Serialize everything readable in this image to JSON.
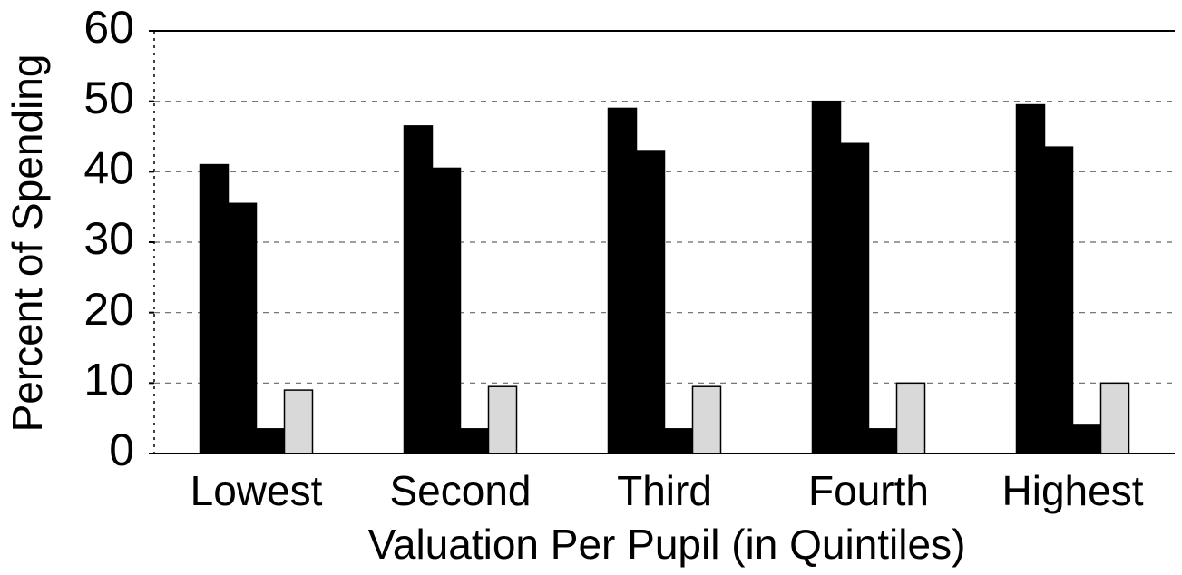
{
  "chart_data": {
    "type": "bar",
    "y_label": "Percent of Spending",
    "x_label": "Valuation Per Pupil  (in Quintiles)",
    "categories": [
      "Lowest",
      "Second",
      "Third",
      "Fourth",
      "Highest"
    ],
    "series": [
      {
        "color": "#000000",
        "values": [
          41,
          46.5,
          49,
          50,
          49.5
        ]
      },
      {
        "color": "#000000",
        "values": [
          35.5,
          40.5,
          43,
          44,
          43.5
        ]
      },
      {
        "color": "#000000",
        "values": [
          3.5,
          3.5,
          3.5,
          3.5,
          4
        ]
      },
      {
        "color": "#d9d9d9",
        "values": [
          9,
          9.5,
          9.5,
          10,
          10
        ]
      }
    ],
    "ylim": [
      0,
      60
    ],
    "yticks": [
      0,
      10,
      20,
      30,
      40,
      50,
      60
    ],
    "grid": true
  }
}
